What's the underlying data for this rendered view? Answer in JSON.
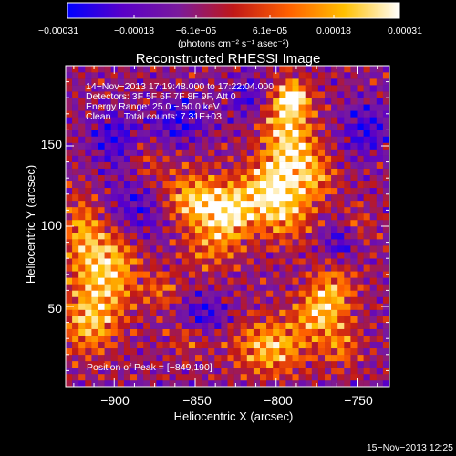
{
  "chart_data": {
    "type": "heatmap",
    "title": "Reconstructed RHESSI Image",
    "xlabel": "Heliocentric X (arcsec)",
    "ylabel": "Heliocentric Y (arcsec)",
    "xlim": [
      -930,
      -730
    ],
    "ylim": [
      0,
      200
    ],
    "x_ticks": [
      -900,
      -850,
      -800,
      -750
    ],
    "y_ticks": [
      50,
      100,
      150
    ],
    "x_tick_labels": [
      "−900",
      "−850",
      "−800",
      "−750"
    ],
    "y_tick_labels": [
      "50",
      "100",
      "150"
    ],
    "colorbar": {
      "range": [
        -0.00031,
        0.00031
      ],
      "tick_labels": [
        "−0.00031",
        "−0.00018",
        "−6.1e−05",
        "6.1e−05",
        "0.00018",
        "0.00031"
      ],
      "unit_label": "(photons cm⁻² s⁻¹ asec⁻²)",
      "colors": [
        "#0000ff",
        "#5a00c8",
        "#7a1a9c",
        "#c01818",
        "#ff6000",
        "#ffc000",
        "#ffffff"
      ]
    },
    "annotations": [
      "14−Nov−2013 17:19:48.000 to 17:22:04.000",
      "Detectors: 3F 5F 6F 7F 8F 9F, Att 0",
      "Energy Range: 25.0 − 50.0 keV",
      "Clean     Total counts: 7.31E+03"
    ],
    "peak_label": "Position of Peak = [−849,190]",
    "peak_position": [
      -849,
      190
    ],
    "footer_date": "15−Nov−2013 12:25"
  }
}
